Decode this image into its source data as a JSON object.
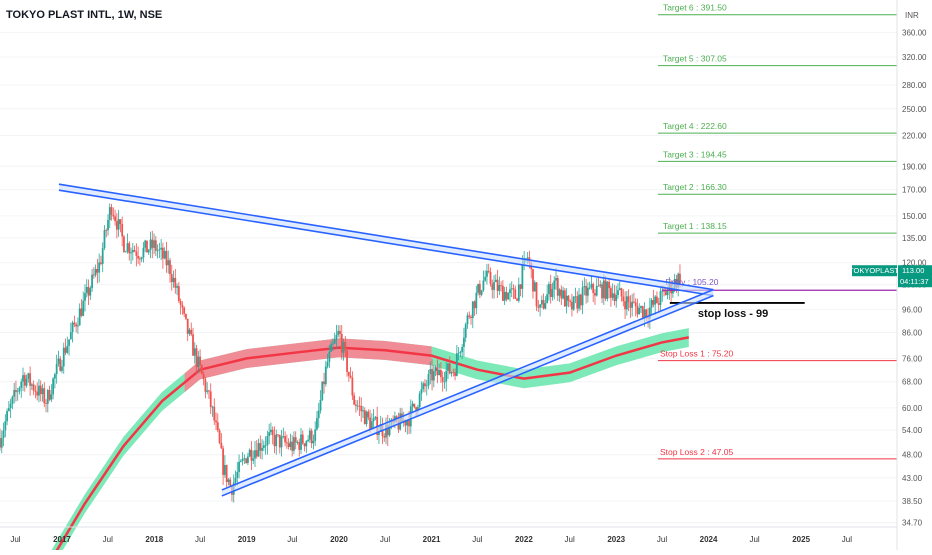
{
  "header": {
    "title": "TOKYO PLAST INTL, 1W, NSE"
  },
  "currency_label": "INR",
  "chart_data": {
    "type": "candlestick",
    "symbol": "TOKYOPLAST",
    "interval": "1W",
    "exchange": "NSE",
    "y_scale": "log",
    "ylim": [
      34.0,
      420.0
    ],
    "x_range": [
      "2016-05-01",
      "2026-01-15"
    ],
    "y_ticks": [
      "360.00",
      "320.00",
      "280.00",
      "250.00",
      "220.00",
      "190.00",
      "170.00",
      "150.00",
      "135.00",
      "120.00",
      "108.00",
      "96.00",
      "86.00",
      "76.00",
      "68.00",
      "60.00",
      "54.00",
      "48.00",
      "43.00",
      "38.50",
      "34.70"
    ],
    "x_ticks": [
      {
        "label": "Jul",
        "date": "2016-07-01"
      },
      {
        "label": "2017",
        "date": "2017-01-01"
      },
      {
        "label": "Jul",
        "date": "2017-07-01"
      },
      {
        "label": "2018",
        "date": "2018-01-01"
      },
      {
        "label": "Jul",
        "date": "2018-07-01"
      },
      {
        "label": "2019",
        "date": "2019-01-01"
      },
      {
        "label": "Jul",
        "date": "2019-07-01"
      },
      {
        "label": "2020",
        "date": "2020-01-01"
      },
      {
        "label": "Jul",
        "date": "2020-07-01"
      },
      {
        "label": "2021",
        "date": "2021-01-01"
      },
      {
        "label": "Jul",
        "date": "2021-07-01"
      },
      {
        "label": "2022",
        "date": "2022-01-01"
      },
      {
        "label": "Jul",
        "date": "2022-07-01"
      },
      {
        "label": "2023",
        "date": "2023-01-01"
      },
      {
        "label": "Jul",
        "date": "2023-07-01"
      },
      {
        "label": "2024",
        "date": "2024-01-01"
      },
      {
        "label": "Jul",
        "date": "2024-07-01"
      },
      {
        "label": "2025",
        "date": "2025-01-01"
      },
      {
        "label": "Jul",
        "date": "2025-07-01"
      }
    ],
    "price_path": [
      [
        "2016-05-01",
        52
      ],
      [
        "2016-08-01",
        70
      ],
      [
        "2016-11-01",
        62
      ],
      [
        "2017-02-01",
        84
      ],
      [
        "2017-04-01",
        100
      ],
      [
        "2017-06-01",
        120
      ],
      [
        "2017-07-15",
        158
      ],
      [
        "2017-09-01",
        132
      ],
      [
        "2017-11-01",
        126
      ],
      [
        "2018-01-01",
        130
      ],
      [
        "2018-03-01",
        118
      ],
      [
        "2018-05-01",
        90
      ],
      [
        "2018-06-15",
        76
      ],
      [
        "2018-08-15",
        60
      ],
      [
        "2018-10-01",
        45
      ],
      [
        "2018-11-01",
        41
      ],
      [
        "2019-01-01",
        48
      ],
      [
        "2019-04-01",
        52
      ],
      [
        "2019-07-01",
        50
      ],
      [
        "2019-10-01",
        53
      ],
      [
        "2019-11-15",
        74
      ],
      [
        "2020-01-01",
        86
      ],
      [
        "2020-03-01",
        62
      ],
      [
        "2020-05-01",
        56
      ],
      [
        "2020-07-01",
        54
      ],
      [
        "2020-10-01",
        57
      ],
      [
        "2021-01-01",
        70
      ],
      [
        "2021-04-01",
        72
      ],
      [
        "2021-06-01",
        95
      ],
      [
        "2021-08-01",
        112
      ],
      [
        "2021-10-01",
        105
      ],
      [
        "2021-12-01",
        102
      ],
      [
        "2022-01-15",
        124
      ],
      [
        "2022-03-01",
        94
      ],
      [
        "2022-05-01",
        110
      ],
      [
        "2022-07-01",
        96
      ],
      [
        "2022-09-01",
        104
      ],
      [
        "2022-11-01",
        106
      ],
      [
        "2023-01-01",
        104
      ],
      [
        "2023-03-01",
        98
      ],
      [
        "2023-05-01",
        95
      ],
      [
        "2023-07-01",
        102
      ],
      [
        "2023-09-15",
        113
      ]
    ],
    "last_price": "113.00",
    "countdown": "04:11:37",
    "entry_label": "Entry : 105.20",
    "entry_price": 105.2,
    "stop_note": "stop loss - 99",
    "stop_note_price": 99,
    "targets": [
      {
        "label": "Target 6 : 391.50",
        "price": 391.5
      },
      {
        "label": "Target 5 : 307.05",
        "price": 307.05
      },
      {
        "label": "Target 4 : 222.60",
        "price": 222.6
      },
      {
        "label": "Target 3 : 194.45",
        "price": 194.45
      },
      {
        "label": "Target 2 : 166.30",
        "price": 166.3
      },
      {
        "label": "Target 1 : 138.15",
        "price": 138.15
      }
    ],
    "stops": [
      {
        "label": "Stop Loss 1 : 75.20",
        "price": 75.2
      },
      {
        "label": "Stop Loss 2 : 47.05",
        "price": 47.05
      }
    ],
    "upper_trendline": [
      [
        "2016-12-20",
        172
      ],
      [
        "2024-01-20",
        104
      ]
    ],
    "lower_trendline": [
      [
        "2018-09-25",
        40
      ],
      [
        "2024-01-20",
        104
      ]
    ],
    "moving_average": [
      [
        "2016-11-01",
        28
      ],
      [
        "2017-04-01",
        38
      ],
      [
        "2017-09-01",
        50
      ],
      [
        "2018-02-01",
        62
      ],
      [
        "2018-07-01",
        72
      ],
      [
        "2019-01-01",
        76
      ],
      [
        "2019-07-01",
        78
      ],
      [
        "2020-01-01",
        80
      ],
      [
        "2020-07-01",
        79
      ],
      [
        "2021-01-01",
        77
      ],
      [
        "2021-07-01",
        72
      ],
      [
        "2022-01-01",
        69
      ],
      [
        "2022-07-01",
        71
      ],
      [
        "2023-01-01",
        77
      ],
      [
        "2023-07-01",
        82
      ],
      [
        "2023-10-15",
        84
      ]
    ],
    "colors": {
      "up": "#26a69a",
      "down": "#ef5350",
      "target": "#4caf50",
      "stop": "#f23645",
      "trendline": "#2962ff",
      "ma": "#f23645",
      "ma_band_red": "#f08c96",
      "ma_band_green": "#7de8b8",
      "entry": "#9c27b0",
      "price_tag": "#089981"
    }
  }
}
